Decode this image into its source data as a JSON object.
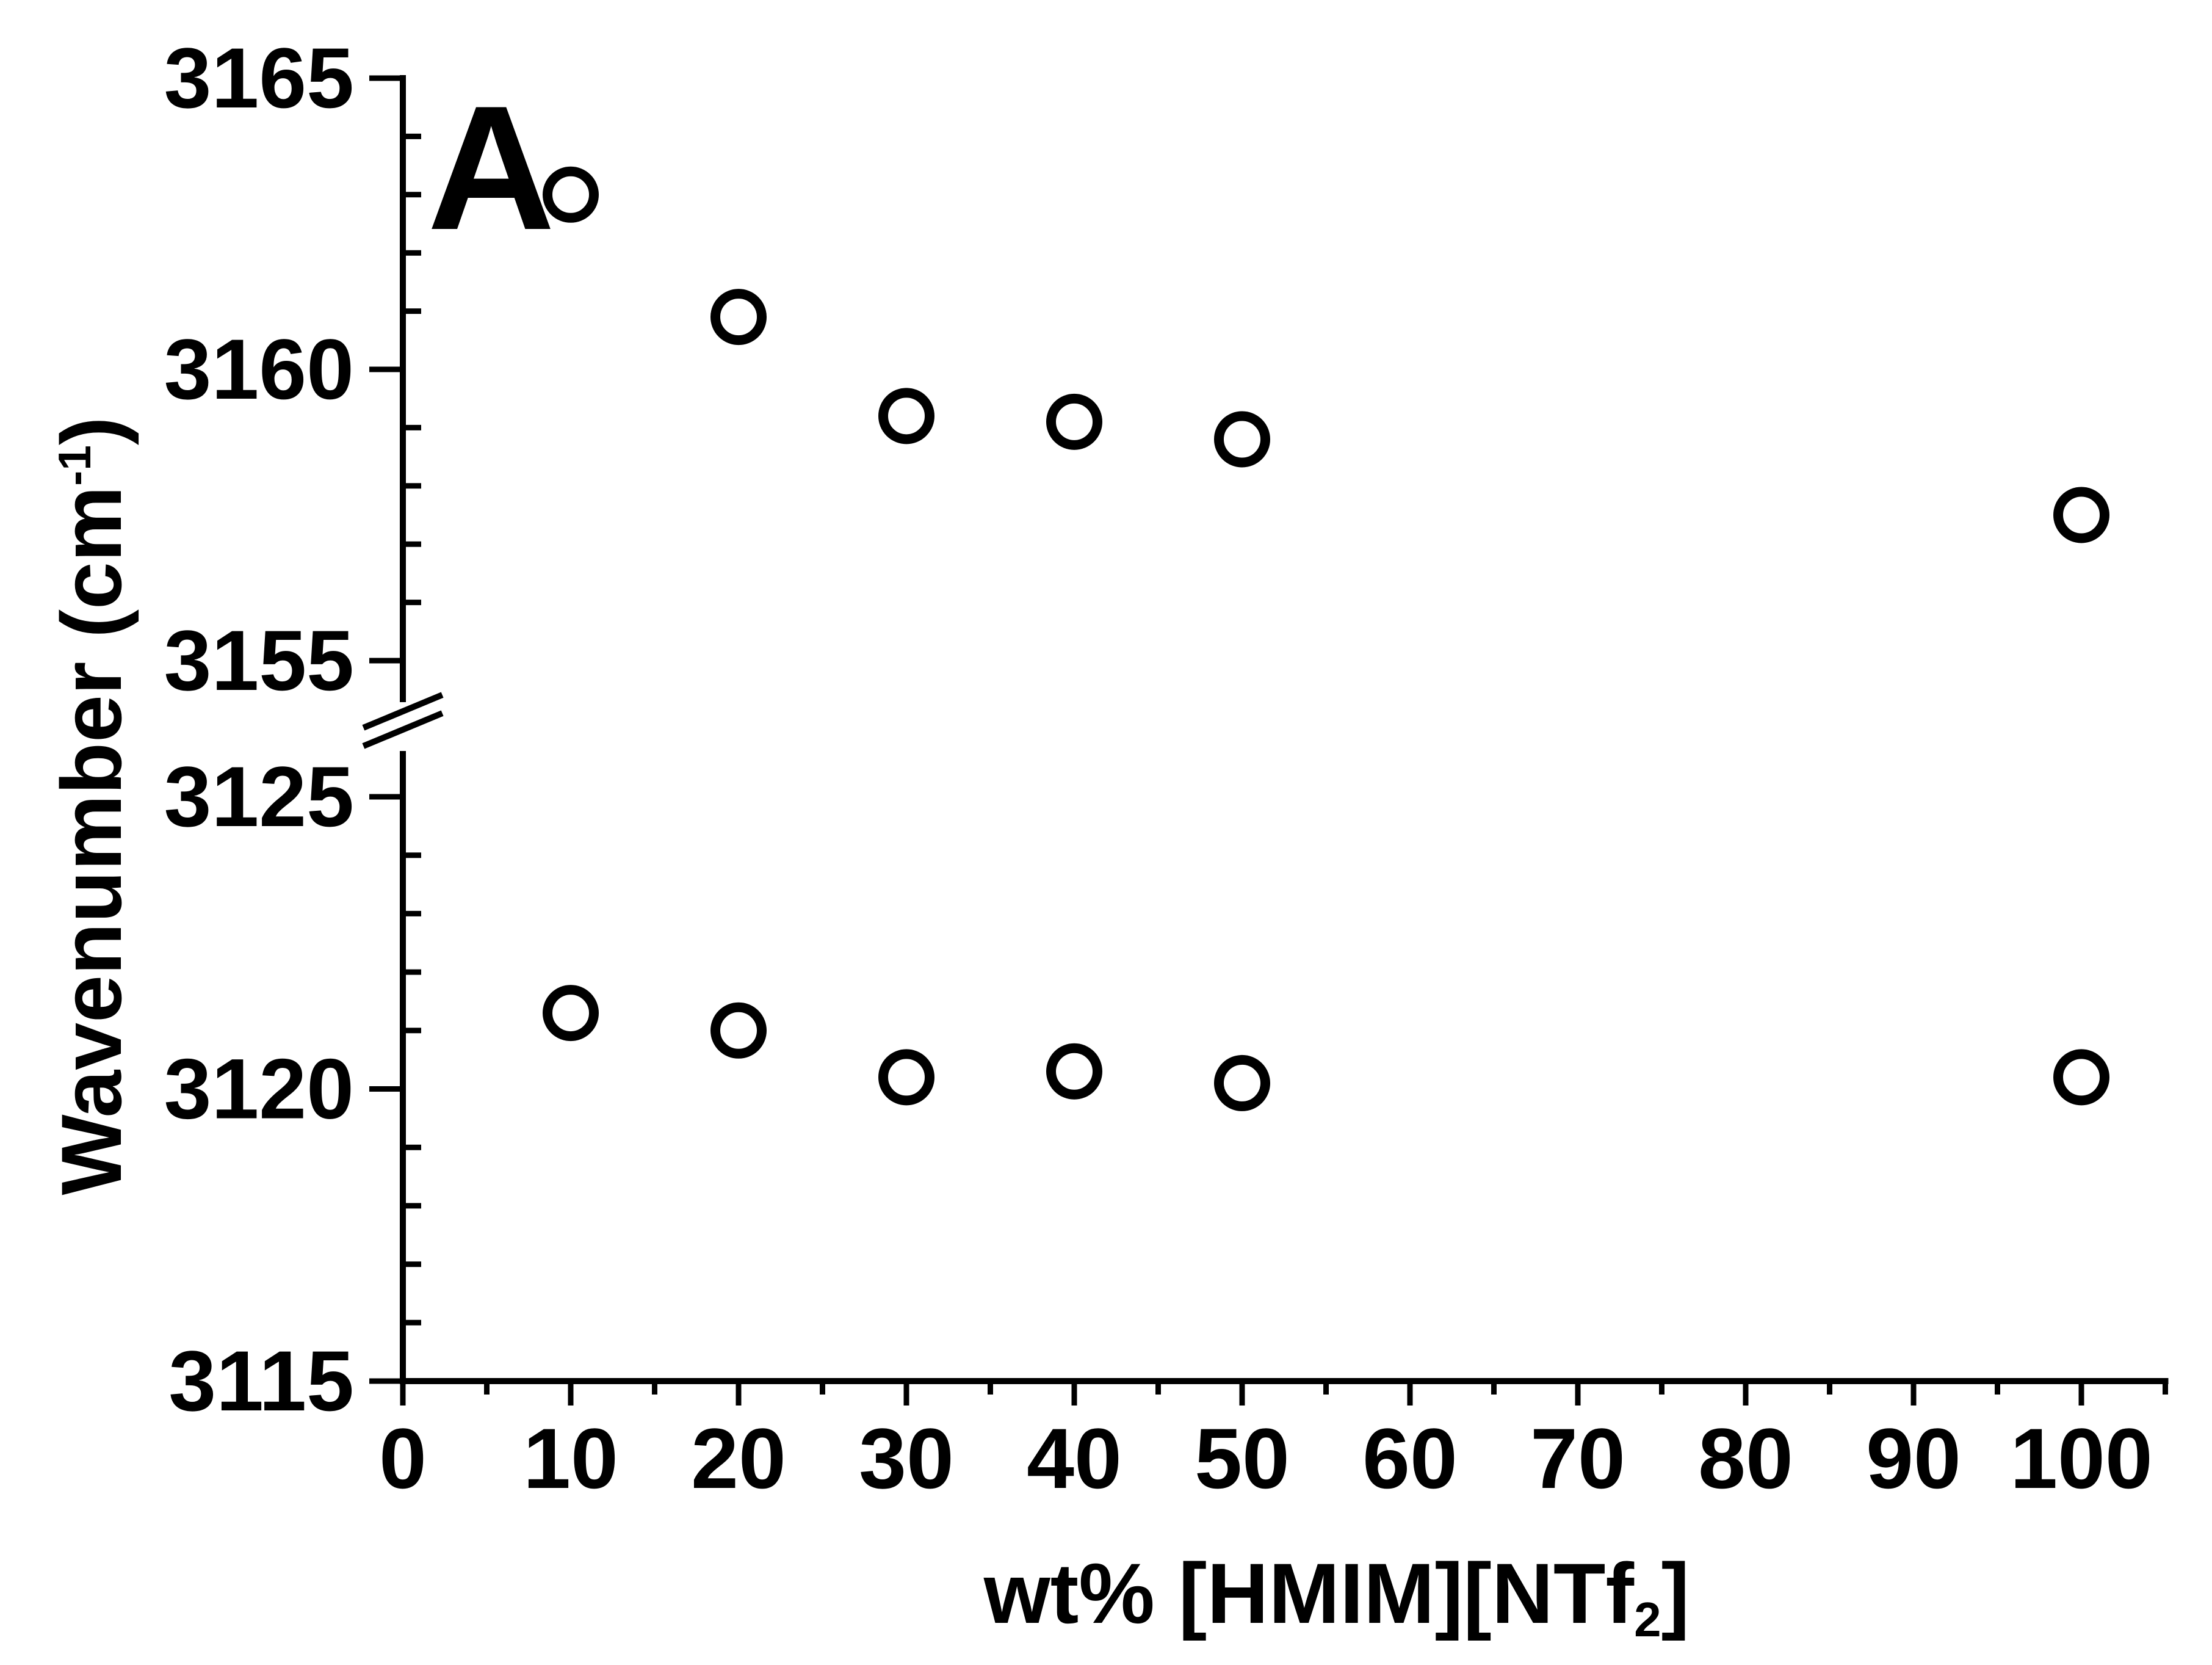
{
  "chart_data": {
    "type": "scatter",
    "panel_label": "A",
    "xlabel": "wt% [HMIM][NTf",
    "xlabel_sub": "2",
    "xlabel_end": "]",
    "ylabel": "Wavenumber (cm",
    "ylabel_sup": "-1",
    "ylabel_end": ")",
    "xlim": [
      0,
      105
    ],
    "x_ticks": [
      "0",
      "10",
      "20",
      "30",
      "40",
      "50",
      "60",
      "70",
      "80",
      "90",
      "100"
    ],
    "y_axis_break": true,
    "ylim_upper": [
      3155,
      3165
    ],
    "ylim_lower": [
      3115,
      3125
    ],
    "y_ticks_upper": [
      "3165",
      "3160",
      "3155"
    ],
    "y_ticks_lower": [
      "3125",
      "3120",
      "3115"
    ],
    "series": [
      {
        "x": [
          10,
          20,
          30,
          40,
          50,
          100
        ],
        "y": [
          3163.0,
          3160.9,
          3159.2,
          3159.1,
          3158.8,
          3157.5
        ]
      },
      {
        "x": [
          10,
          20,
          30,
          40,
          50,
          100
        ],
        "y": [
          3121.3,
          3121.0,
          3120.2,
          3120.3,
          3120.1,
          3120.2
        ]
      }
    ],
    "marker": "open-circle",
    "grid": false,
    "legend": "none"
  }
}
